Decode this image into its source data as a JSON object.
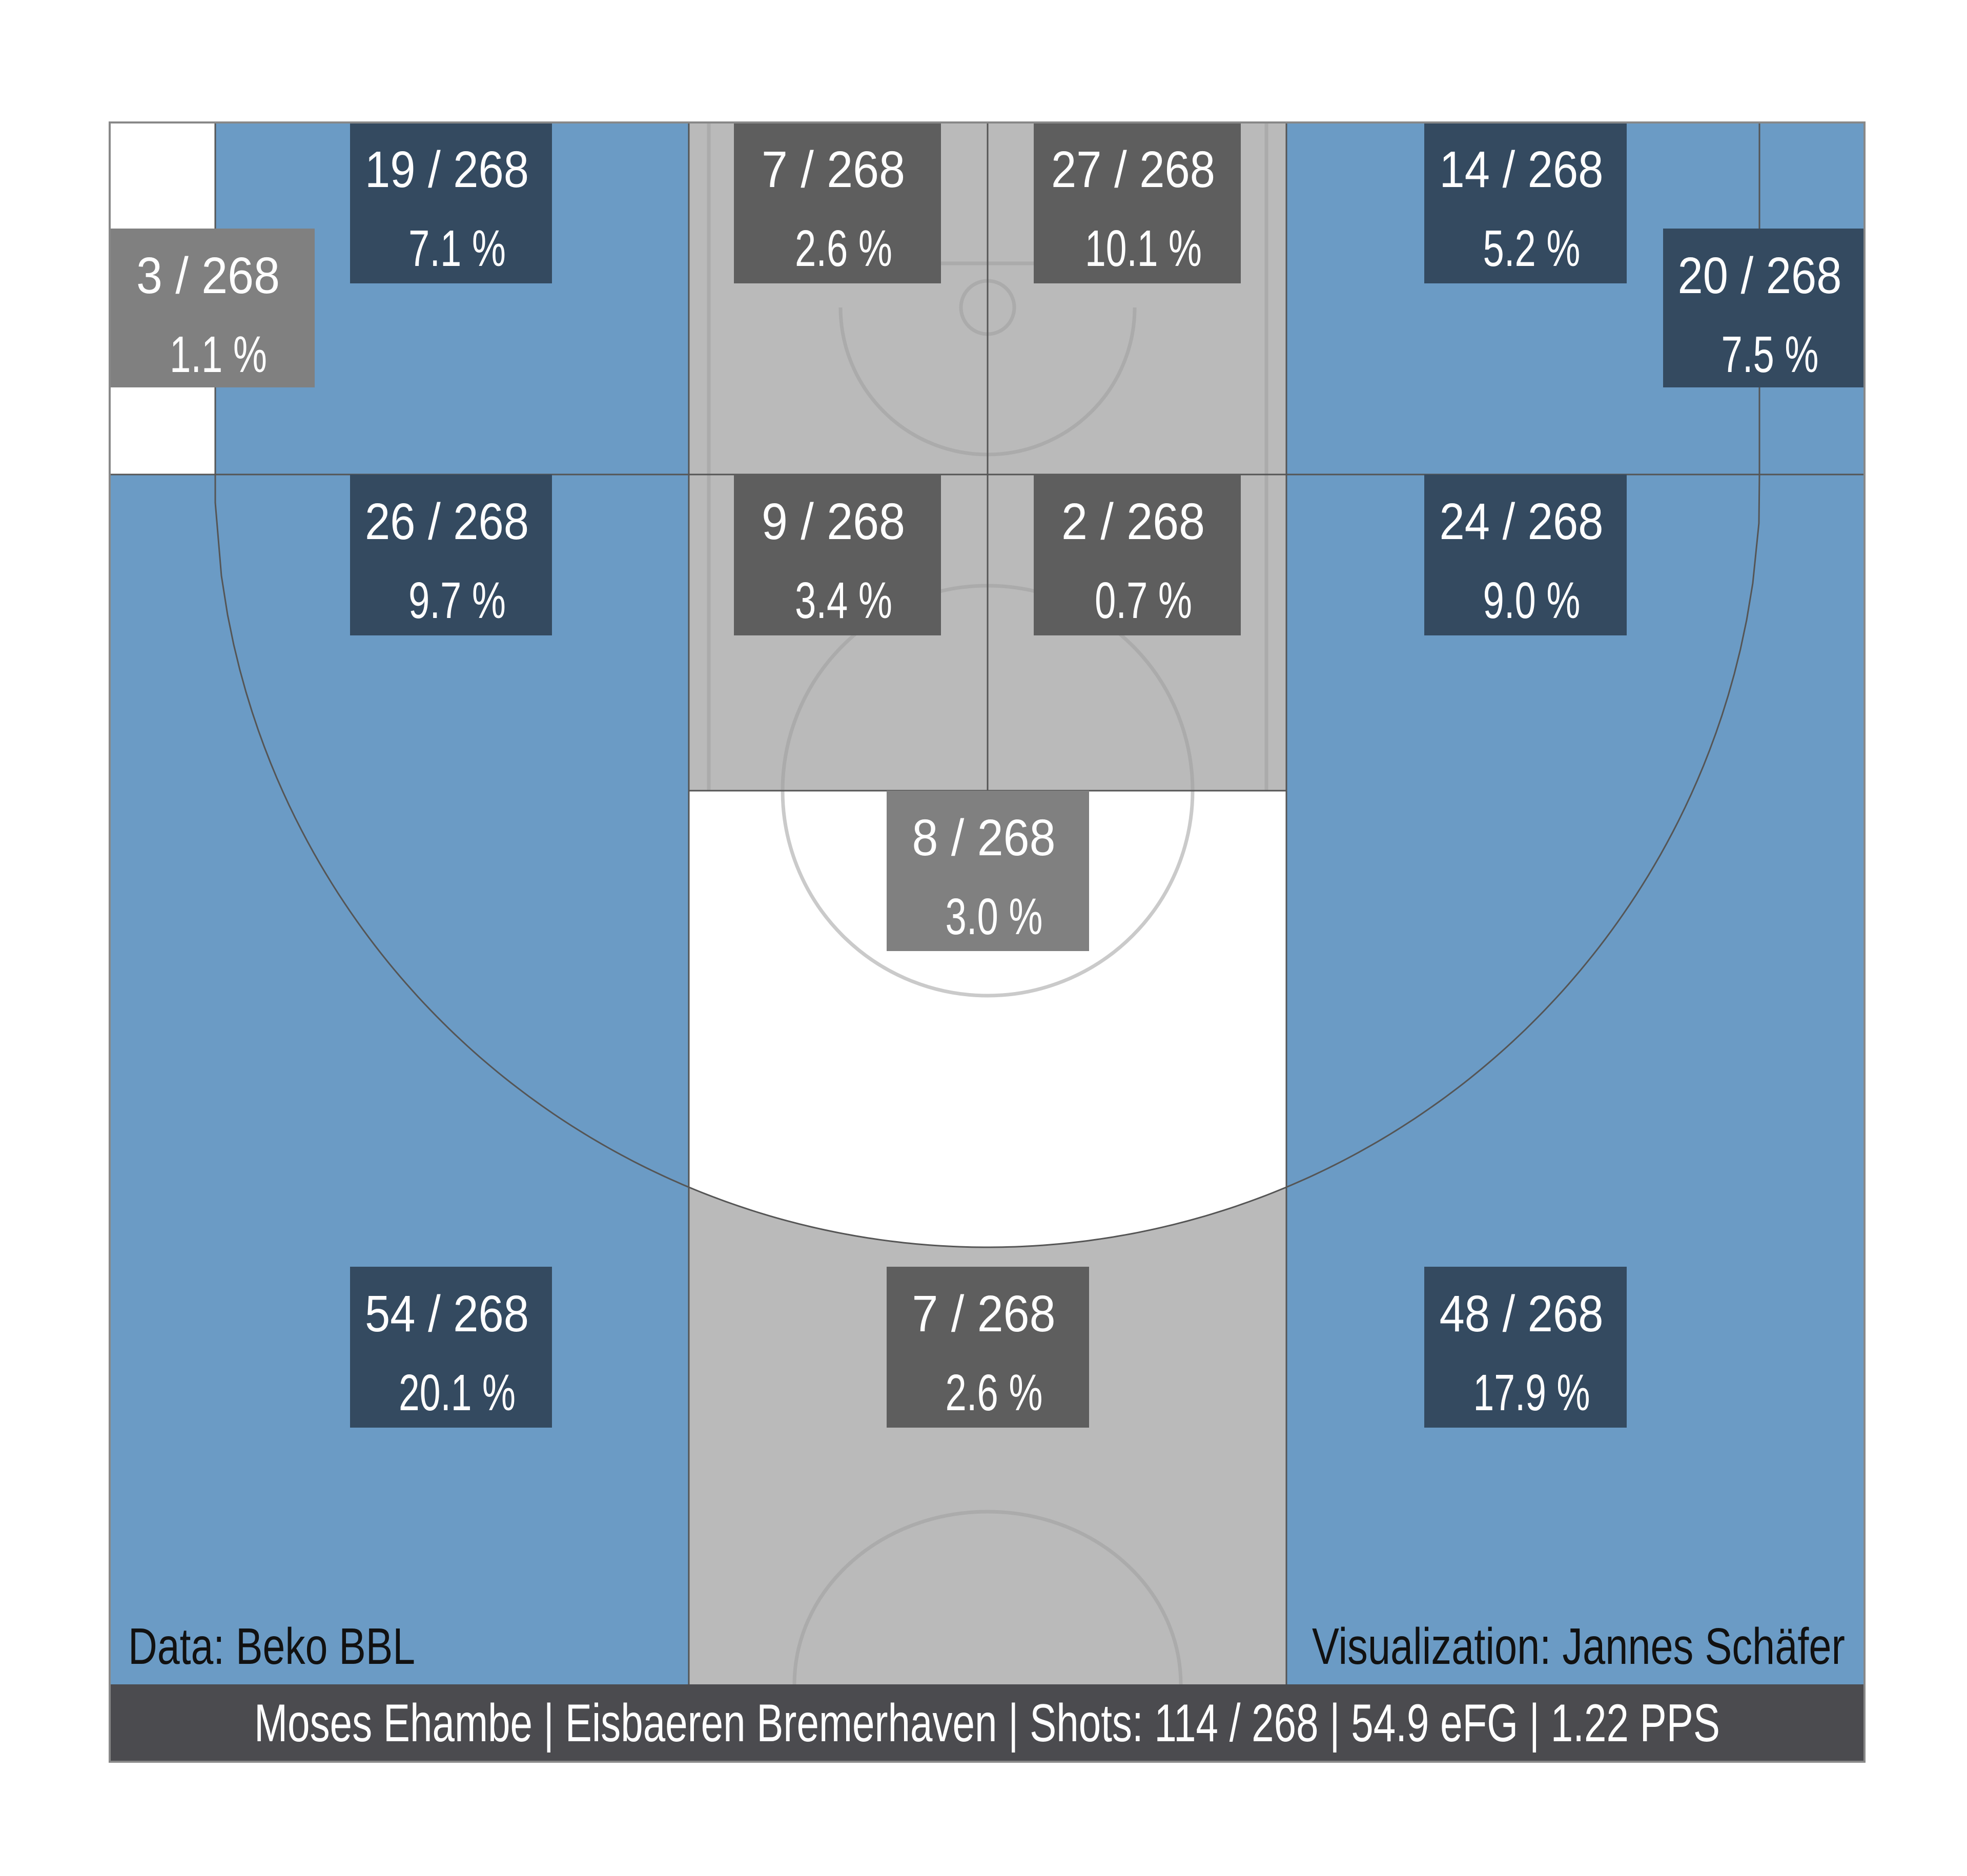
{
  "chart_data": {
    "type": "heatmap",
    "title": "",
    "colors": {
      "blue_zone": "#6b9bc5",
      "gray_zone": "#bababa",
      "white_zone": "#ffffff",
      "blue_label_box": "#344a60",
      "gray_label_box": "#5e5e5e",
      "light_label_box": "#808080",
      "footer_bar": "#4b4b4f",
      "label_text": "#ffffff",
      "credit_text": "#111111",
      "court_lines": "#9e9e9e",
      "zone_borders": "#555555"
    },
    "zones": [
      {
        "id": "left-corner-three",
        "zone_color": "white_zone",
        "box_color": "light_label_box",
        "count": "3 / 268",
        "share": "1.1 %",
        "value": 1.1
      },
      {
        "id": "left-wing-upper",
        "zone_color": "blue_zone",
        "box_color": "blue_label_box",
        "count": "19 / 268",
        "share": "7.1 %",
        "value": 7.1
      },
      {
        "id": "paint-left-baseline",
        "zone_color": "gray_zone",
        "box_color": "gray_label_box",
        "count": "7 / 268",
        "share": "2.6 %",
        "value": 2.6
      },
      {
        "id": "paint-right-baseline",
        "zone_color": "gray_zone",
        "box_color": "gray_label_box",
        "count": "27 / 268",
        "share": "10.1 %",
        "value": 10.1
      },
      {
        "id": "right-wing-upper",
        "zone_color": "blue_zone",
        "box_color": "blue_label_box",
        "count": "14 / 268",
        "share": "5.2 %",
        "value": 5.2
      },
      {
        "id": "right-corner-three",
        "zone_color": "blue_zone",
        "box_color": "blue_label_box",
        "count": "20 / 268",
        "share": "7.5 %",
        "value": 7.5
      },
      {
        "id": "left-wing-mid",
        "zone_color": "blue_zone",
        "box_color": "blue_label_box",
        "count": "26 / 268",
        "share": "9.7 %",
        "value": 9.7
      },
      {
        "id": "paint-left-mid",
        "zone_color": "gray_zone",
        "box_color": "gray_label_box",
        "count": "9 / 268",
        "share": "3.4 %",
        "value": 3.4
      },
      {
        "id": "paint-right-mid",
        "zone_color": "gray_zone",
        "box_color": "gray_label_box",
        "count": "2 / 268",
        "share": "0.7 %",
        "value": 0.7
      },
      {
        "id": "right-wing-mid",
        "zone_color": "blue_zone",
        "box_color": "blue_label_box",
        "count": "24 / 268",
        "share": "9.0 %",
        "value": 9.0
      },
      {
        "id": "free-throw-top",
        "zone_color": "white_zone",
        "box_color": "light_label_box",
        "count": "8 / 268",
        "share": "3.0 %",
        "value": 3.0
      },
      {
        "id": "left-deep-three",
        "zone_color": "blue_zone",
        "box_color": "blue_label_box",
        "count": "54 / 268",
        "share": "20.1 %",
        "value": 20.1
      },
      {
        "id": "top-deep-three",
        "zone_color": "gray_zone",
        "box_color": "gray_label_box",
        "count": "7 / 268",
        "share": "2.6 %",
        "value": 2.6
      },
      {
        "id": "right-deep-three",
        "zone_color": "blue_zone",
        "box_color": "blue_label_box",
        "count": "48 / 268",
        "share": "17.9 %",
        "value": 17.9
      }
    ],
    "credits": {
      "data_source": "Data: Beko BBL",
      "visualization": "Visualization: Jannes Schäfer"
    },
    "footer": "Moses Ehambe | Eisbaeren Bremerhaven | Shots: 114 / 268 | 54.9 eFG | 1.22 PPS"
  }
}
